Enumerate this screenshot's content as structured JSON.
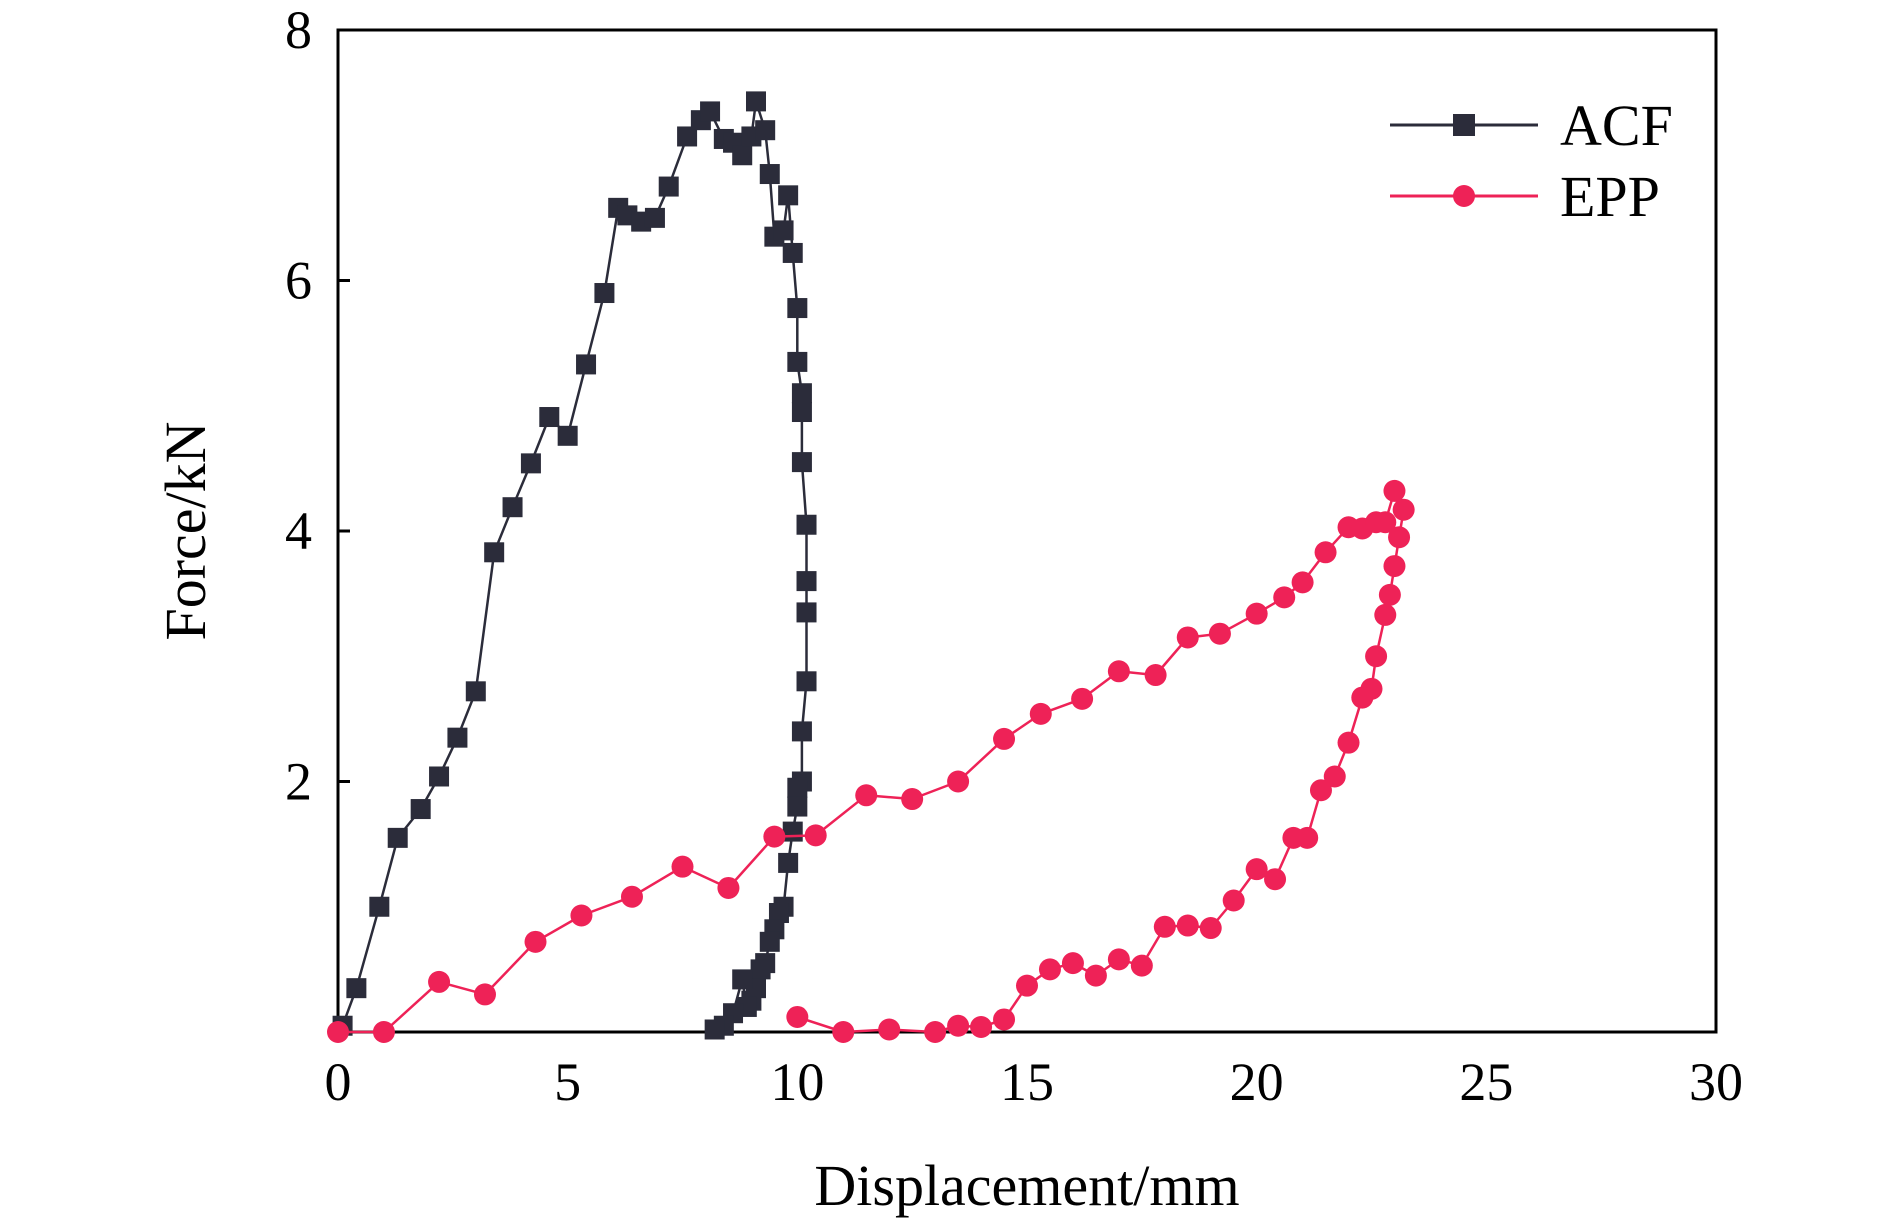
{
  "chart_data": {
    "type": "scatter",
    "title": "",
    "xlabel": "Displacement/mm",
    "ylabel": "Force/kN",
    "xlim": [
      0,
      30
    ],
    "ylim": [
      0,
      8
    ],
    "xticks": [
      0,
      5,
      10,
      15,
      20,
      25,
      30
    ],
    "yticks": [
      2,
      4,
      6,
      8
    ],
    "grid": false,
    "legend_position": "top-right",
    "series": [
      {
        "name": "ACF",
        "color": "#2b2c3a",
        "marker": "square",
        "x": [
          0.1,
          0.4,
          0.9,
          1.3,
          1.8,
          2.2,
          2.6,
          3.0,
          3.4,
          3.8,
          4.2,
          4.6,
          5.0,
          5.4,
          5.8,
          6.1,
          6.3,
          6.6,
          6.9,
          7.2,
          7.6,
          7.9,
          8.1,
          8.4,
          8.6,
          8.8,
          9.0,
          9.1,
          9.3,
          9.4,
          9.5,
          9.7,
          9.8,
          9.9,
          10.0,
          10.0,
          10.1,
          10.1,
          10.1,
          10.2,
          10.2,
          10.2,
          10.2,
          10.1,
          10.1,
          10.0,
          10.0,
          9.9,
          9.8,
          9.7,
          9.6,
          9.5,
          9.4,
          9.3,
          9.2,
          9.1,
          9.0,
          8.9,
          8.8,
          8.6,
          8.4,
          8.2
        ],
        "y": [
          0.05,
          0.35,
          1.0,
          1.55,
          1.78,
          2.04,
          2.35,
          2.72,
          3.83,
          4.19,
          4.54,
          4.91,
          4.76,
          5.33,
          5.9,
          6.58,
          6.52,
          6.47,
          6.5,
          6.75,
          7.15,
          7.28,
          7.35,
          7.13,
          7.1,
          7.0,
          7.15,
          7.43,
          7.2,
          6.85,
          6.35,
          6.4,
          6.68,
          6.22,
          5.78,
          5.35,
          5.1,
          4.95,
          4.55,
          4.05,
          3.6,
          3.35,
          2.8,
          2.4,
          2.0,
          1.95,
          1.8,
          1.6,
          1.35,
          1.0,
          0.95,
          0.82,
          0.72,
          0.55,
          0.5,
          0.35,
          0.25,
          0.2,
          0.42,
          0.15,
          0.05,
          0.02
        ]
      },
      {
        "name": "EPP",
        "color": "#ee2257",
        "marker": "circle",
        "x": [
          0.0,
          1.0,
          2.2,
          3.2,
          4.3,
          5.3,
          6.4,
          7.5,
          8.5,
          9.5,
          10.4,
          11.5,
          12.5,
          13.5,
          14.5,
          15.3,
          16.2,
          17.0,
          17.8,
          18.5,
          19.2,
          20.0,
          20.6,
          21.0,
          21.5,
          22.0,
          22.3,
          22.6,
          22.8,
          23.0,
          23.2,
          23.1,
          23.0,
          22.9,
          22.8,
          22.6,
          22.5,
          22.3,
          22.0,
          21.7,
          21.4,
          21.1,
          20.8,
          20.4,
          20.0,
          19.5,
          19.0,
          18.5,
          18.0,
          17.5,
          17.0,
          16.5,
          16.0,
          15.5,
          15.0,
          14.5,
          14.0,
          13.5,
          13.0,
          12.0,
          11.0,
          10.0
        ],
        "y": [
          0.0,
          0.0,
          0.4,
          0.3,
          0.72,
          0.93,
          1.08,
          1.32,
          1.15,
          1.56,
          1.57,
          1.89,
          1.86,
          2.0,
          2.34,
          2.54,
          2.66,
          2.88,
          2.85,
          3.15,
          3.18,
          3.34,
          3.47,
          3.59,
          3.83,
          4.03,
          4.02,
          4.07,
          4.07,
          4.32,
          4.17,
          3.95,
          3.72,
          3.49,
          3.33,
          3.0,
          2.74,
          2.67,
          2.31,
          2.04,
          1.93,
          1.55,
          1.55,
          1.22,
          1.3,
          1.05,
          0.83,
          0.85,
          0.84,
          0.53,
          0.58,
          0.45,
          0.55,
          0.5,
          0.37,
          0.1,
          0.04,
          0.05,
          0.0,
          0.02,
          0.0,
          0.12
        ]
      }
    ]
  }
}
